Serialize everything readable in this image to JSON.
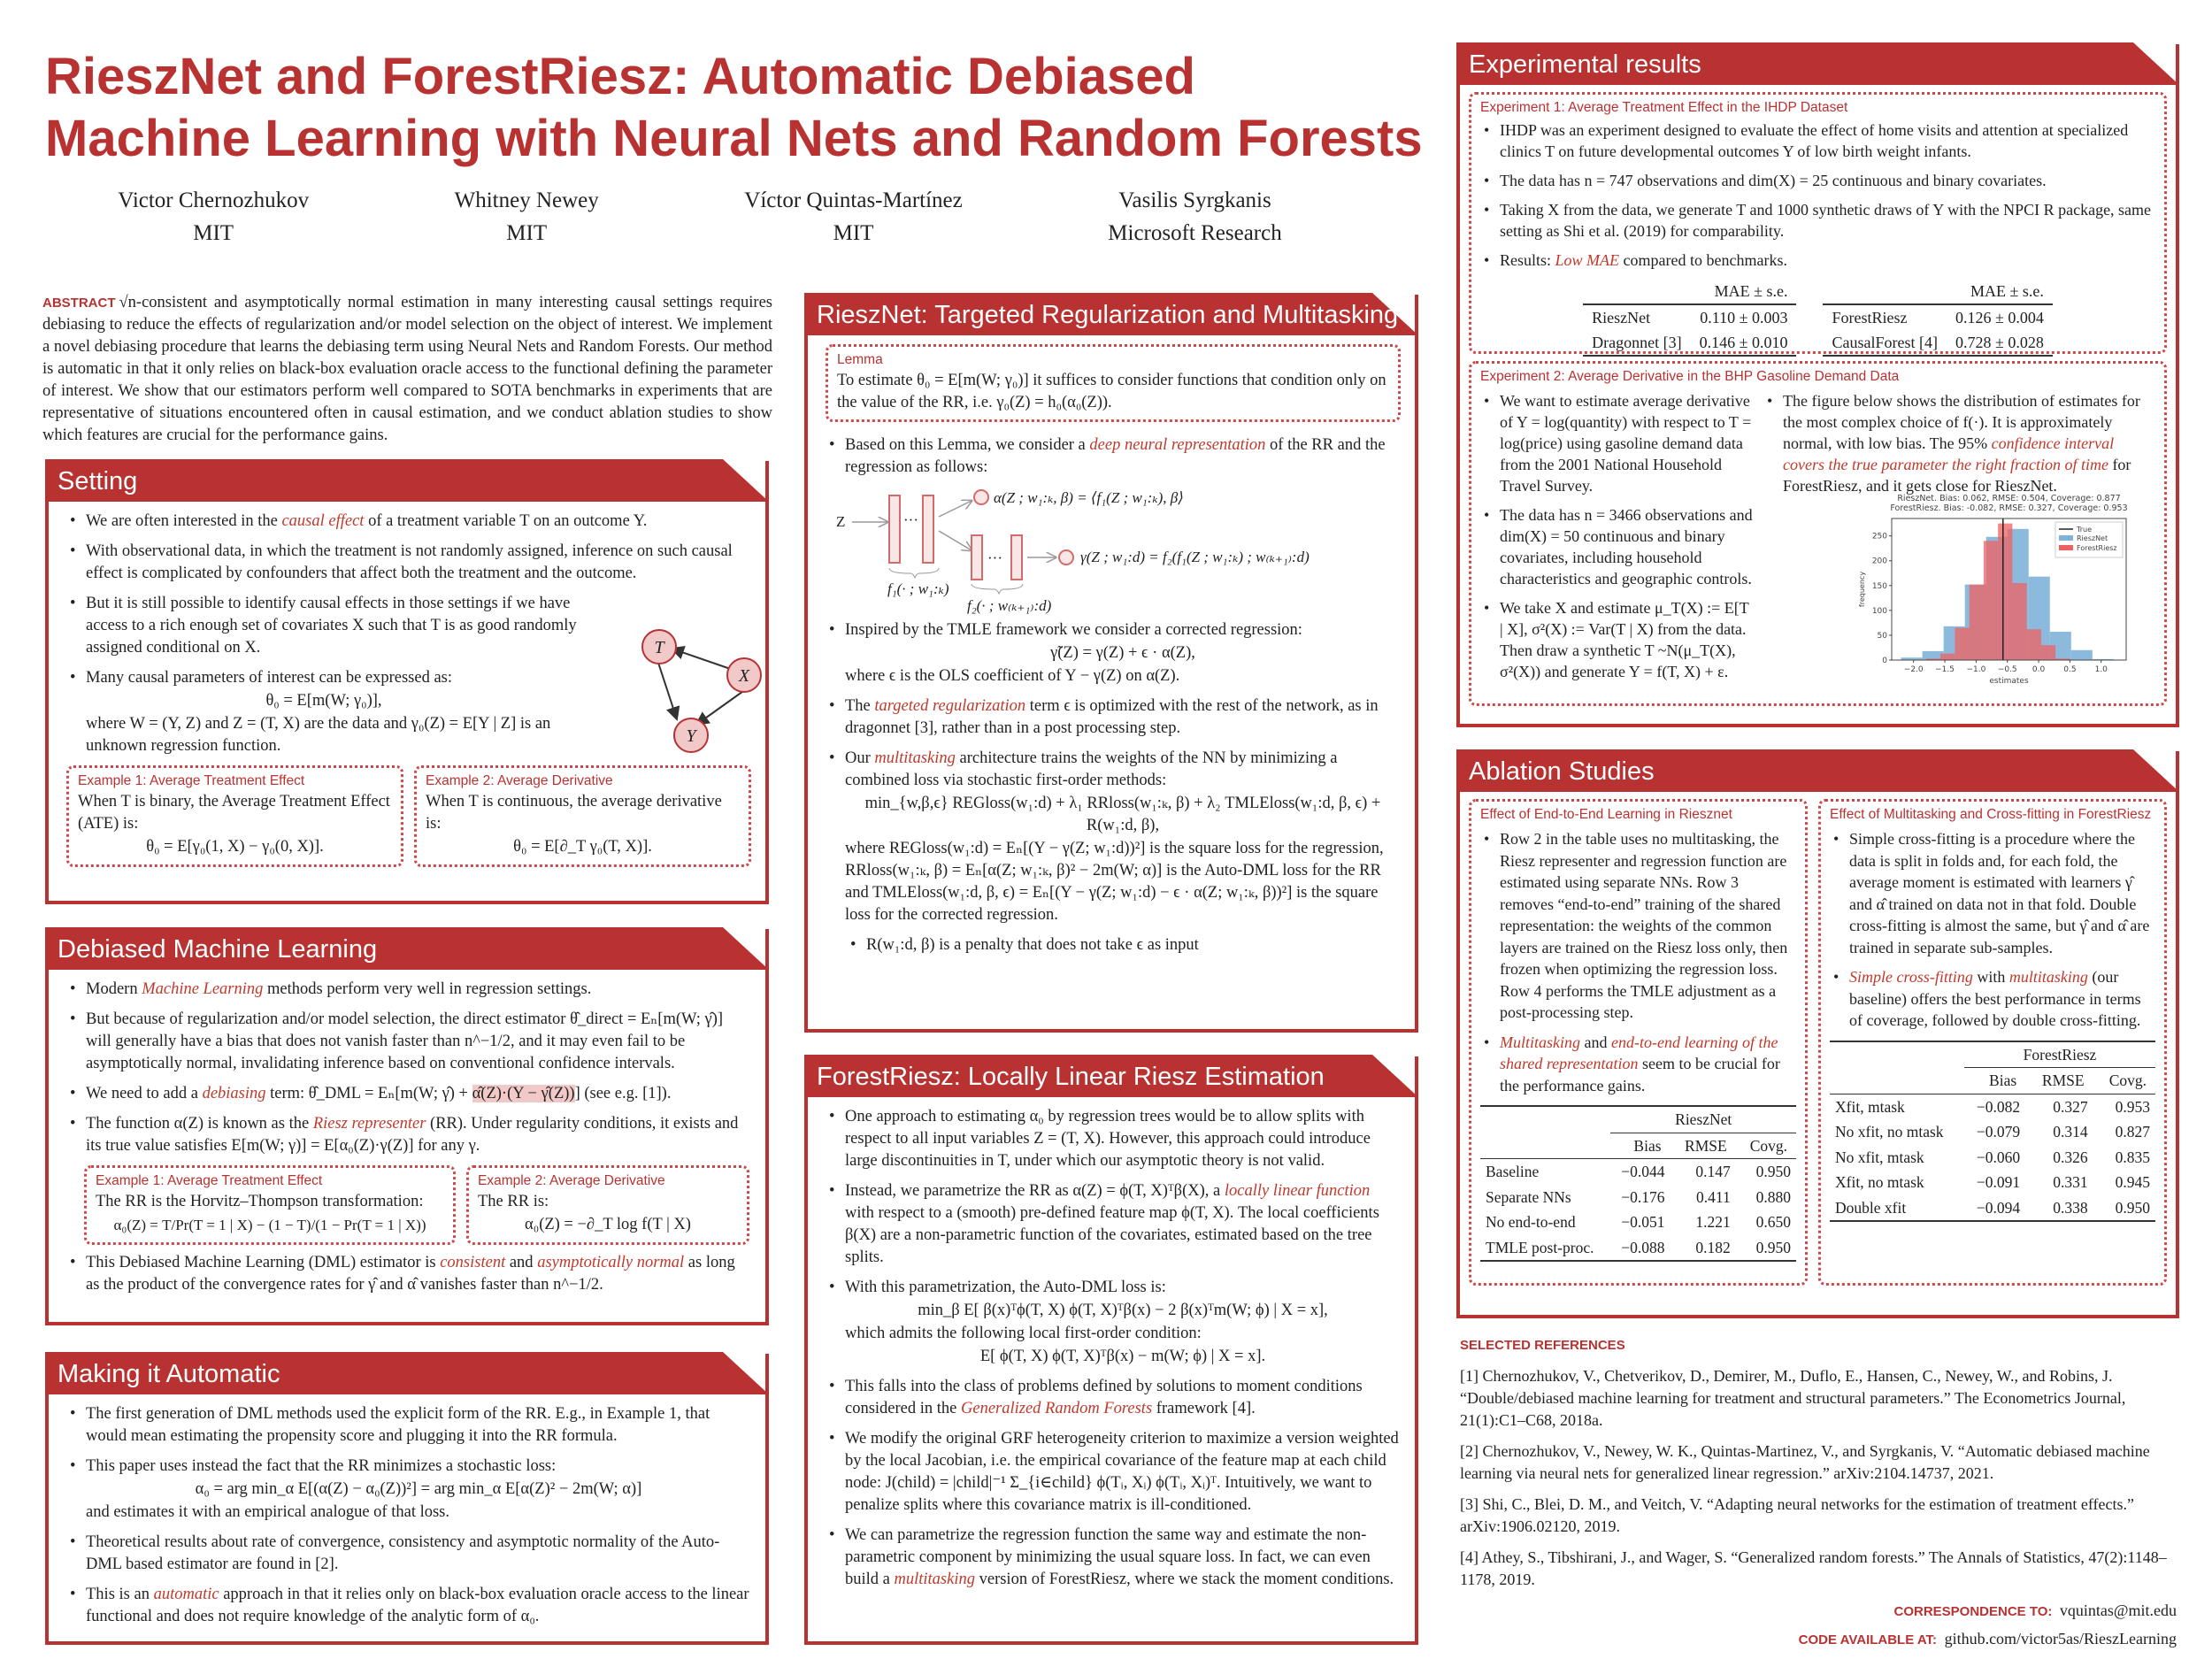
{
  "title": [
    "RieszNet and ForestRiesz: Automatic Debiased",
    "Machine Learning with Neural Nets and Random Forests"
  ],
  "authors": [
    {
      "name": "Victor Chernozhukov",
      "aff": "MIT"
    },
    {
      "name": "Whitney Newey",
      "aff": "MIT"
    },
    {
      "name": "Víctor Quintas-Martínez",
      "aff": "MIT"
    },
    {
      "name": "Vasilis Syrgkanis",
      "aff": "Microsoft Research"
    }
  ],
  "abstract": {
    "label": "ABSTRACT",
    "text": "√n-consistent and asymptotically normal estimation in many interesting causal settings requires debiasing to reduce the effects of regularization and/or model selection on the object of interest. We implement a novel debiasing procedure that learns the debiasing term using Neural Nets and Random Forests. Our method is automatic in that it only relies on black-box evaluation oracle access to the functional defining the parameter of interest. We show that our estimators perform well compared to SOTA benchmarks in experiments that are representative of situations encountered often in causal estimation, and we conduct ablation studies to show which features are crucial for the performance gains."
  },
  "colors": {
    "accent": "#b83232",
    "emphasis": "#c0392b",
    "highlight": "#f2c9c9",
    "riesznet": "#7fb2d9",
    "forestriesz": "#f06060"
  },
  "setting": {
    "title": "Setting",
    "bullets": [
      [
        "We are often interested in the ",
        {
          "em": "causal effect"
        },
        " of a treatment variable T on an outcome Y."
      ],
      [
        "With observational data, in which the treatment is not randomly assigned, inference on such causal effect is complicated by confounders that affect both the treatment and the outcome."
      ],
      [
        "But it is still possible to identify causal effects in those settings if we have access to a rich enough set of covariates X such that T is as good randomly assigned conditional on X."
      ],
      [
        "Many causal parameters of interest can be expressed as:",
        {
          "eq": "θ₀ = E[m(W; γ₀)],"
        },
        "where W = (Y, Z) and Z = (T, X) are the data and γ₀(Z) = E[Y | Z] is an unknown regression function."
      ]
    ],
    "dag": {
      "nodes": [
        "T",
        "X",
        "Y"
      ]
    },
    "examples": [
      {
        "title": "Example 1: Average Treatment Effect",
        "text": "When T is binary, the Average Treatment Effect (ATE) is:",
        "eq": "θ₀ = E[γ₀(1, X) − γ₀(0, X)]."
      },
      {
        "title": "Example 2: Average Derivative",
        "text": "When T is continuous, the average derivative is:",
        "eq": "θ₀ = E[∂_T γ₀(T, X)]."
      }
    ]
  },
  "dml": {
    "title": "Debiased Machine Learning",
    "bullets": [
      [
        "Modern ",
        {
          "em": "Machine Learning"
        },
        " methods perform very well in regression settings."
      ],
      [
        "But because of regularization and/or model selection, the direct estimator θ̂_direct = Eₙ[m(W; γ̂)] will generally have a bias that does not vanish faster than n^−1/2, and it may even fail to be asymptotically normal, invalidating inference based on conventional confidence intervals."
      ],
      [
        "We need to add a ",
        {
          "em": "debiasing"
        },
        " term: θ̂_DML = Eₙ[m(W; γ̂) + ",
        {
          "hl": "α̂(Z)·(Y − γ̂(Z))"
        },
        "]   (see e.g. [1])."
      ],
      [
        "The function α(Z) is known as the ",
        {
          "em": "Riesz representer"
        },
        " (RR). Under regularity conditions, it exists and its true value satisfies E[m(W; γ)] = E[α₀(Z)·γ(Z)] for any γ."
      ]
    ],
    "examples": [
      {
        "title": "Example 1: Average Treatment Effect",
        "text": "The RR is the Horvitz–Thompson transformation:",
        "eq": "α₀(Z) = T/Pr(T = 1 | X) − (1 − T)/(1 − Pr(T = 1 | X))"
      },
      {
        "title": "Example 2: Average Derivative",
        "text": "The RR is:",
        "eq": "α₀(Z) = −∂_T log f(T | X)"
      }
    ],
    "bullets2": [
      [
        "This Debiased Machine Learning (DML) estimator is ",
        {
          "em": "consistent"
        },
        " and ",
        {
          "em": "asymptotically normal"
        },
        " as long as the product of the convergence rates for γ̂ and α̂ vanishes faster than n^−1/2."
      ]
    ]
  },
  "automatic": {
    "title": "Making it Automatic",
    "bullets": [
      [
        "The first generation of DML methods used the explicit form of the RR. E.g., in Example 1, that would mean estimating the propensity score and plugging it into the RR formula."
      ],
      [
        "This paper uses instead the fact that the RR minimizes a stochastic loss:",
        {
          "eq": "α₀ = arg min_α E[(α(Z) − α₀(Z))²] = arg min_α E[α(Z)² − 2m(W; α)]"
        },
        "and estimates it with an empirical analogue of that loss."
      ],
      [
        "Theoretical results about rate of convergence, consistency and asymptotic normality of the Auto-DML based estimator are found in [2]."
      ],
      [
        "This is an ",
        {
          "em": "automatic"
        },
        " approach in that it relies only on black-box evaluation oracle access to the linear functional and does not require knowledge of the analytic form of α₀."
      ]
    ]
  },
  "riesznet": {
    "title": "RieszNet: Targeted Regularization and Multitasking",
    "lemma": {
      "title": "Lemma",
      "text": "To estimate θ₀ = E[m(W; γ₀)] it suffices to consider functions that condition only on the value of the RR, i.e. γ₀(Z) = h₀(α₀(Z))."
    },
    "bullets": [
      [
        "Based on this Lemma, we consider a ",
        {
          "em": "deep neural representation"
        },
        " of the RR and the regression as follows:"
      ]
    ],
    "diagram": {
      "input": "Z",
      "dots": "···",
      "alpha": "α(Z ; w₁:ₖ, β) = ⟨f₁(Z ; w₁:ₖ), β⟩",
      "gamma": "γ(Z ; w₁:d) = f₂(f₁(Z ; w₁:ₖ) ; w₍ₖ₊₁₎:d)",
      "f1": "f₁(· ; w₁:ₖ)",
      "f2": "f₂(· ; w₍ₖ₊₁₎:d)"
    },
    "bullets2": [
      [
        "Inspired by the TMLE framework we consider a corrected regression:",
        {
          "eq": "γ̃(Z) = γ(Z) + ϵ · α(Z),"
        },
        "where ϵ is the OLS coefficient of Y − γ(Z) on α(Z)."
      ],
      [
        "The ",
        {
          "em": "targeted regularization"
        },
        " term ϵ is optimized with the rest of the network, as in dragonnet [3], rather than in a post processing step."
      ],
      [
        "Our ",
        {
          "em": "multitasking"
        },
        " architecture trains the weights of the NN by minimizing a combined loss via stochastic first-order methods:",
        {
          "eq": "min_{w,β,ϵ} REGloss(w₁:d) + λ₁ RRloss(w₁:ₖ, β) + λ₂ TMLEloss(w₁:d, β, ϵ) + R(w₁:d, β),"
        },
        "where REGloss(w₁:d) = Eₙ[(Y − γ(Z; w₁:d))²] is the square loss for the regression, RRloss(w₁:ₖ, β) = Eₙ[α(Z; w₁:ₖ, β)² − 2m(W; α)] is the Auto-DML loss for the RR and TMLEloss(w₁:d, β, ϵ) = Eₙ[(Y − γ(Z; w₁:d) − ϵ · α(Z; w₁:ₖ, β))²] is the square loss for the corrected regression."
      ]
    ],
    "sub": [
      [
        "R(w₁:d, β) is a penalty that does not take ϵ as input"
      ]
    ]
  },
  "forestriesz": {
    "title": "ForestRiesz: Locally Linear Riesz Estimation",
    "bullets": [
      [
        "One approach to estimating α₀ by regression trees would be to allow splits with respect to all input variables Z = (T, X). However, this approach could introduce large discontinuities in T, under which our asymptotic theory is not valid."
      ],
      [
        "Instead, we parametrize the RR as α(Z) = ϕ(T, X)ᵀβ(X), a ",
        {
          "em": "locally linear function"
        },
        " with respect to a (smooth) pre-defined feature map ϕ(T, X). The local coefficients β(X) are a non-parametric function of the covariates, estimated based on the tree splits."
      ],
      [
        "With this parametrization, the Auto-DML loss is:",
        {
          "eq": "min_β E[ β(x)ᵀϕ(T, X) ϕ(T, X)ᵀβ(x) − 2 β(x)ᵀm(W; ϕ) | X = x],"
        },
        "which admits the following local first-order condition:",
        {
          "eq": "E[ ϕ(T, X) ϕ(T, X)ᵀβ(x) − m(W; ϕ) | X = x]."
        }
      ],
      [
        "This falls into the class of problems defined by solutions to moment conditions considered in the ",
        {
          "em": "Generalized Random Forests"
        },
        " framework [4]."
      ],
      [
        "We modify the original GRF heterogeneity criterion to maximize a version weighted by the local Jacobian, i.e. the empirical covariance of the feature map at each child node: J(child) = |child|⁻¹ Σ_{i∈child} ϕ(Tᵢ, Xᵢ) ϕ(Tᵢ, Xᵢ)ᵀ. Intuitively, we want to penalize splits where this covariance matrix is ill-conditioned."
      ],
      [
        "We can parametrize the regression function the same way and estimate the non-parametric component by minimizing the usual square loss. In fact, we can even build a ",
        {
          "em": "multitasking"
        },
        " version of ForestRiesz, where we stack the moment conditions."
      ]
    ]
  },
  "experiments": {
    "title": "Experimental results",
    "exp1": {
      "title": "Experiment 1: Average Treatment Effect in the IHDP Dataset",
      "bullets": [
        [
          "IHDP was an experiment designed to evaluate the effect of home visits and attention at specialized clinics T on future developmental outcomes Y of low birth weight infants."
        ],
        [
          "The data has n = 747 observations and dim(X) = 25 continuous and binary covariates."
        ],
        [
          "Taking X from the data, we generate T and 1000 synthetic draws of Y with the NPCI R package, same setting as Shi et al. (2019) for comparability."
        ],
        [
          "Results: ",
          {
            "em": "Low MAE"
          },
          " compared to benchmarks."
        ]
      ],
      "tables": [
        {
          "header": "MAE ± s.e.",
          "rows": [
            [
              "RieszNet",
              "0.110 ± 0.003"
            ],
            [
              "Dragonnet [3]",
              "0.146 ± 0.010"
            ]
          ]
        },
        {
          "header": "MAE ± s.e.",
          "rows": [
            [
              "ForestRiesz",
              "0.126 ± 0.004"
            ],
            [
              "CausalForest [4]",
              "0.728 ± 0.028"
            ]
          ]
        }
      ]
    },
    "exp2": {
      "title": "Experiment 2: Average Derivative in the BHP Gasoline Demand Data",
      "bullets": [
        [
          "We want to estimate average derivative of Y = log(quantity) with respect to T = log(price) using gasoline demand data from the 2001 National Household Travel Survey."
        ],
        [
          "The data has n = 3466 observations and dim(X) = 50 continuous and binary covariates, including household characteristics and geographic controls."
        ],
        [
          "We take X and estimate μ_T(X) := E[T | X], σ²(X) := Var(T | X) from the data. Then draw a synthetic T ~N(μ_T(X), σ²(X)) and generate Y = f(T, X) + ε."
        ]
      ],
      "bullets_right": [
        [
          "The figure below shows the distribution of estimates for the most complex choice of f(·). It is approximately normal, with low bias. The 95% ",
          {
            "em": "confidence interval covers the true parameter the right fraction of time"
          },
          " for ForestRiesz, and it gets close for RieszNet."
        ]
      ]
    }
  },
  "chart_data": {
    "type": "bar",
    "subtype": "histogram",
    "title": [
      "RieszNet. Bias: 0.062, RMSE: 0.504, Coverage: 0.877",
      "ForestRiesz. Bias: -0.082, RMSE: 0.327, Coverage: 0.953"
    ],
    "xlabel": "estimates",
    "ylabel": "frequency",
    "xlim": [
      -2.35,
      1.4
    ],
    "ylim": [
      0,
      285
    ],
    "xticks": [
      "−2.0",
      "−1.5",
      "−1.0",
      "−0.5",
      "0.0",
      "0.5",
      "1.0"
    ],
    "xtick_values": [
      -2,
      -1.5,
      -1,
      -0.5,
      0,
      0.5,
      1
    ],
    "yticks": [
      0,
      50,
      100,
      150,
      200,
      250
    ],
    "legend": "top-right",
    "grid": false,
    "true_value": -0.57,
    "legend_true": "True",
    "series": [
      {
        "name": "RieszNet",
        "color": "#7fb2d9",
        "bin_edges": [
          -2.2,
          -1.86,
          -1.52,
          -1.18,
          -0.84,
          -0.5,
          -0.16,
          0.18,
          0.52,
          0.86,
          1.2
        ],
        "counts": [
          5,
          18,
          68,
          152,
          248,
          264,
          168,
          57,
          20,
          2
        ]
      },
      {
        "name": "ForestRiesz",
        "color": "#f06060",
        "bin_edges": [
          -1.8,
          -1.57,
          -1.34,
          -1.11,
          -0.88,
          -0.65,
          -0.42,
          -0.19,
          0.04,
          0.27,
          0.5
        ],
        "counts": [
          3,
          13,
          65,
          152,
          240,
          275,
          155,
          62,
          30,
          3
        ]
      }
    ]
  },
  "ablation": {
    "title": "Ablation Studies",
    "left": {
      "title": "Effect of End-to-End Learning in Riesznet",
      "bullets": [
        [
          "Row 2 in the table uses no multitasking, the Riesz representer and regression function are estimated using separate NNs. Row 3 removes “end-to-end” training of the shared representation: the weights of the common layers are trained on the Riesz loss only, then frozen when optimizing the regression loss. Row 4 performs the TMLE adjustment as a post-processing step."
        ],
        [
          {
            "em": "Multitasking"
          },
          " and ",
          {
            "em": "end-to-end learning of the shared representation"
          },
          " seem to be crucial for the performance gains."
        ]
      ],
      "table": {
        "group": "RieszNet",
        "cols": [
          "Bias",
          "RMSE",
          "Covg."
        ],
        "rows": [
          [
            "Baseline",
            "−0.044",
            "0.147",
            "0.950"
          ],
          [
            "Separate NNs",
            "−0.176",
            "0.411",
            "0.880"
          ],
          [
            "No end-to-end",
            "−0.051",
            "1.221",
            "0.650"
          ],
          [
            "TMLE post-proc.",
            "−0.088",
            "0.182",
            "0.950"
          ]
        ]
      }
    },
    "right": {
      "title": "Effect of Multitasking and Cross-fitting in ForestRiesz",
      "bullets": [
        [
          "Simple cross-fitting is a procedure where the data is split in folds and, for each fold, the average moment is estimated with learners γ̂ and α̂ trained on data not in that fold. Double cross-fitting is almost the same, but γ̂ and α̂ are trained in separate sub-samples."
        ],
        [
          {
            "em": "Simple cross-fitting"
          },
          " with ",
          {
            "em": "multitasking"
          },
          " (our baseline) offers the best performance in terms of coverage, followed by double cross-fitting."
        ]
      ],
      "table": {
        "group": "ForestRiesz",
        "cols": [
          "Bias",
          "RMSE",
          "Covg."
        ],
        "rows": [
          [
            "Xfit, mtask",
            "−0.082",
            "0.327",
            "0.953"
          ],
          [
            "No xfit, no mtask",
            "−0.079",
            "0.314",
            "0.827"
          ],
          [
            "No xfit, mtask",
            "−0.060",
            "0.326",
            "0.835"
          ],
          [
            "Xfit, no mtask",
            "−0.091",
            "0.331",
            "0.945"
          ],
          [
            "Double xfit",
            "−0.094",
            "0.338",
            "0.950"
          ]
        ]
      }
    }
  },
  "references": {
    "title": "SELECTED REFERENCES",
    "items": [
      "[1] Chernozhukov, V., Chetverikov, D., Demirer, M., Duflo, E., Hansen, C., Newey, W., and Robins, J. “Double/debiased machine learning for treatment and structural parameters.” The Econometrics Journal, 21(1):C1–C68, 2018a.",
      "[2] Chernozhukov, V., Newey, W. K., Quintas-Martinez, V., and Syrgkanis, V. “Automatic debiased machine learning via neural nets for generalized linear regression.” arXiv:2104.14737, 2021.",
      "[3] Shi, C., Blei, D. M., and Veitch, V. “Adapting neural networks for the estimation of treatment effects.” arXiv:1906.02120, 2019.",
      "[4] Athey, S., Tibshirani, J., and Wager, S. “Generalized random forests.” The Annals of Statistics, 47(2):1148–1178, 2019."
    ],
    "correspondence_label": "CORRESPONDENCE TO:",
    "correspondence": "vquintas@mit.edu",
    "code_label": "CODE AVAILABLE AT:",
    "code": "github.com/victor5as/RieszLearning"
  }
}
